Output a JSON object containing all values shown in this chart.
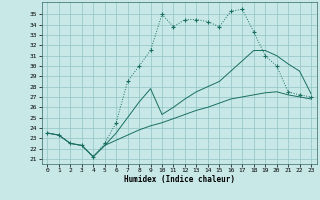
{
  "xlabel": "Humidex (Indice chaleur)",
  "background_color": "#c8e8e8",
  "grid_color": "#90c4c4",
  "line_color": "#1a6e60",
  "xlim": [
    -0.5,
    23.5
  ],
  "ylim": [
    20.5,
    36.2
  ],
  "xticks": [
    0,
    1,
    2,
    3,
    4,
    5,
    6,
    7,
    8,
    9,
    10,
    11,
    12,
    13,
    14,
    15,
    16,
    17,
    18,
    19,
    20,
    21,
    22,
    23
  ],
  "yticks": [
    21,
    22,
    23,
    24,
    25,
    26,
    27,
    28,
    29,
    30,
    31,
    32,
    33,
    34,
    35
  ],
  "dotted_x": [
    0,
    1,
    2,
    3,
    4,
    5,
    6,
    7,
    8,
    9,
    10,
    11,
    12,
    13,
    14,
    15,
    16,
    17,
    18,
    19,
    20,
    21,
    22,
    23
  ],
  "dotted_y": [
    23.5,
    23.3,
    22.5,
    22.3,
    21.2,
    22.5,
    24.5,
    28.5,
    30.0,
    31.5,
    35.0,
    33.8,
    34.5,
    34.5,
    34.3,
    33.8,
    35.3,
    35.5,
    33.3,
    31.0,
    30.0,
    27.5,
    27.2,
    27.0
  ],
  "line2_x": [
    0,
    1,
    2,
    3,
    4,
    5,
    6,
    7,
    8,
    9,
    10,
    11,
    12,
    13,
    14,
    15,
    16,
    17,
    18,
    19,
    20,
    21,
    22,
    23
  ],
  "line2_y": [
    23.5,
    23.3,
    22.5,
    22.3,
    21.2,
    22.3,
    22.8,
    23.3,
    23.8,
    24.2,
    24.5,
    24.9,
    25.3,
    25.7,
    26.0,
    26.4,
    26.8,
    27.0,
    27.2,
    27.4,
    27.5,
    27.2,
    27.0,
    26.8
  ],
  "line3_x": [
    0,
    1,
    2,
    3,
    4,
    5,
    6,
    7,
    8,
    9,
    10,
    11,
    12,
    13,
    14,
    15,
    16,
    17,
    18,
    19,
    20,
    21,
    22,
    23
  ],
  "line3_y": [
    23.5,
    23.3,
    22.5,
    22.3,
    21.2,
    22.3,
    23.5,
    25.0,
    26.5,
    27.8,
    25.3,
    26.0,
    26.8,
    27.5,
    28.0,
    28.5,
    29.5,
    30.5,
    31.5,
    31.5,
    31.0,
    30.2,
    29.5,
    27.3
  ]
}
